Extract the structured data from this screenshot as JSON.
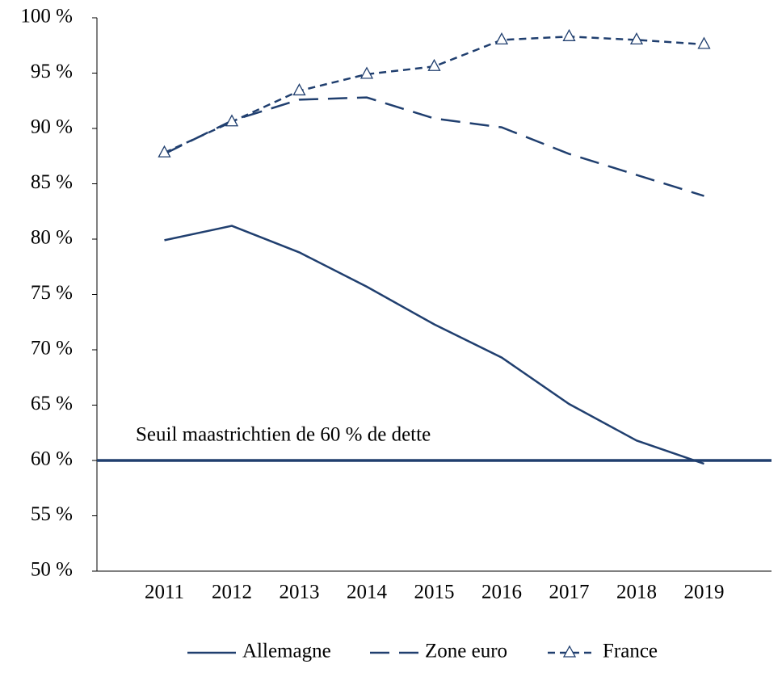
{
  "chart_data": {
    "type": "line",
    "categories": [
      "2011",
      "2012",
      "2013",
      "2014",
      "2015",
      "2016",
      "2017",
      "2018",
      "2019"
    ],
    "series": [
      {
        "name": "Allemagne",
        "color": "#203f6f",
        "dash": "solid",
        "marker": "none",
        "values": [
          79.9,
          81.2,
          78.8,
          75.7,
          72.3,
          69.3,
          65.1,
          61.8,
          59.7
        ]
      },
      {
        "name": "Zone euro",
        "color": "#203f6f",
        "dash": "long",
        "marker": "none",
        "values": [
          87.7,
          90.7,
          92.6,
          92.8,
          90.9,
          90.1,
          87.7,
          85.8,
          83.9
        ]
      },
      {
        "name": "France",
        "color": "#203f6f",
        "dash": "short",
        "marker": "triangle",
        "values": [
          87.8,
          90.6,
          93.4,
          94.9,
          95.6,
          98.0,
          98.3,
          98.0,
          97.6
        ]
      }
    ],
    "ylim": [
      50,
      100
    ],
    "yticks": [
      {
        "value": 50,
        "label": "50 %"
      },
      {
        "value": 55,
        "label": "55 %"
      },
      {
        "value": 60,
        "label": "60 %"
      },
      {
        "value": 65,
        "label": "65 %"
      },
      {
        "value": 70,
        "label": "70 %"
      },
      {
        "value": 75,
        "label": "75 %"
      },
      {
        "value": 80,
        "label": "80 %"
      },
      {
        "value": 85,
        "label": "85 %"
      },
      {
        "value": 90,
        "label": "90 %"
      },
      {
        "value": 95,
        "label": "95 %"
      },
      {
        "value": 100,
        "label": "100 %"
      }
    ],
    "reference_line": {
      "value": 60,
      "label": "Seuil maastrichtien de 60 % de dette",
      "color": "#203f6f"
    },
    "grid": false,
    "legend": "bottom"
  }
}
